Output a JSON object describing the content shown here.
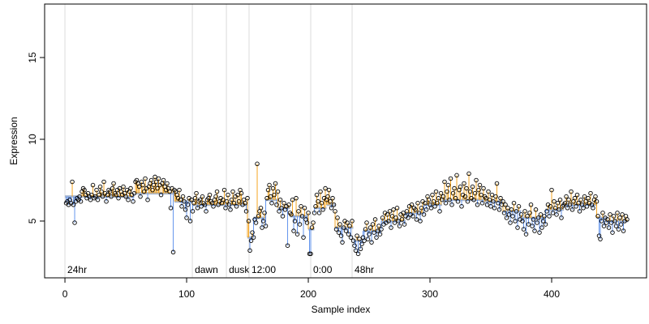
{
  "chart_data": {
    "type": "scatter",
    "x_label": "Sample index",
    "y_label": "Expression",
    "xlim": [
      -16.7,
      478
    ],
    "ylim": [
      1.53,
      18.27
    ],
    "xticks": [
      0,
      100,
      200,
      300,
      400
    ],
    "yticks": [
      5,
      10,
      15
    ],
    "point_color": "#000000",
    "above_color": "#f5a623",
    "below_color": "#6495ed",
    "fit_color": "#a9b8d0",
    "annotation_color": "#b0b0b0",
    "annotations": [
      {
        "x": 0,
        "label": "24hr"
      },
      {
        "x": 104.7,
        "label": "dawn"
      },
      {
        "x": 132.7,
        "label": "dusk"
      },
      {
        "x": 151.3,
        "label": "12:00"
      },
      {
        "x": 202,
        "label": "0:00"
      },
      {
        "x": 236,
        "label": "48hr"
      }
    ],
    "fit_segments": [
      {
        "start": 0,
        "end": 57,
        "level": 6.5
      },
      {
        "start": 57,
        "end": 90,
        "level": 6.7
      },
      {
        "start": 90,
        "end": 105,
        "level": 6.2
      },
      {
        "start": 105,
        "end": 150,
        "level": 6.0
      },
      {
        "start": 150,
        "end": 155,
        "level": 4.0
      },
      {
        "start": 155,
        "end": 165,
        "level": 5.2
      },
      {
        "start": 165,
        "end": 175,
        "level": 6.3
      },
      {
        "start": 175,
        "end": 185,
        "level": 5.8
      },
      {
        "start": 185,
        "end": 200,
        "level": 5.3
      },
      {
        "start": 200,
        "end": 205,
        "level": 4.5
      },
      {
        "start": 205,
        "end": 215,
        "level": 5.8
      },
      {
        "start": 215,
        "end": 222,
        "level": 6.0
      },
      {
        "start": 222,
        "end": 237,
        "level": 4.6
      },
      {
        "start": 237,
        "end": 245,
        "level": 3.8
      },
      {
        "start": 245,
        "end": 260,
        "level": 4.4
      },
      {
        "start": 260,
        "end": 280,
        "level": 5.0
      },
      {
        "start": 280,
        "end": 295,
        "level": 5.5
      },
      {
        "start": 295,
        "end": 310,
        "level": 6.0
      },
      {
        "start": 310,
        "end": 345,
        "level": 6.3
      },
      {
        "start": 345,
        "end": 360,
        "level": 6.2
      },
      {
        "start": 360,
        "end": 375,
        "level": 5.6
      },
      {
        "start": 375,
        "end": 395,
        "level": 5.2
      },
      {
        "start": 395,
        "end": 410,
        "level": 5.7
      },
      {
        "start": 410,
        "end": 437,
        "level": 6.0
      },
      {
        "start": 437,
        "end": 445,
        "level": 5.2
      },
      {
        "start": 445,
        "end": 463,
        "level": 5.0
      }
    ],
    "values": [
      6.1,
      6.2,
      6.0,
      6.3,
      6.1,
      7.4,
      6.0,
      4.9,
      6.2,
      6.4,
      6.3,
      6.5,
      6.2,
      6.8,
      7.0,
      6.9,
      6.6,
      6.4,
      6.7,
      6.5,
      6.3,
      6.6,
      7.2,
      6.4,
      6.5,
      6.9,
      6.3,
      6.6,
      7.1,
      6.8,
      6.5,
      7.4,
      6.7,
      6.2,
      6.6,
      6.9,
      6.8,
      6.5,
      7.0,
      7.3,
      6.7,
      6.6,
      6.9,
      6.4,
      7.0,
      6.8,
      6.6,
      7.1,
      6.7,
      6.5,
      6.9,
      6.3,
      6.8,
      7.0,
      6.6,
      6.2,
      6.7,
      7.4,
      7.5,
      7.3,
      7.1,
      6.5,
      7.4,
      7.2,
      6.8,
      7.6,
      7.0,
      6.3,
      7.1,
      7.3,
      7.5,
      6.9,
      7.2,
      7.7,
      7.4,
      7.0,
      7.6,
      7.2,
      6.6,
      7.3,
      7.5,
      7.1,
      6.9,
      7.3,
      7.0,
      6.8,
      5.8,
      7.0,
      3.1,
      6.9,
      6.8,
      6.6,
      6.4,
      6.9,
      6.3,
      5.9,
      6.5,
      6.2,
      5.7,
      5.2,
      6.0,
      6.4,
      5.0,
      6.3,
      5.6,
      6.1,
      6.4,
      6.7,
      5.8,
      6.2,
      6.3,
      5.9,
      6.5,
      6.1,
      6.0,
      5.6,
      6.3,
      6.4,
      6.6,
      6.2,
      6.1,
      5.9,
      6.3,
      6.5,
      6.8,
      6.0,
      6.2,
      6.4,
      6.1,
      6.3,
      6.9,
      5.8,
      6.2,
      6.6,
      6.0,
      5.7,
      6.3,
      6.8,
      6.1,
      6.5,
      5.9,
      6.6,
      6.2,
      6.9,
      6.7,
      6.0,
      6.3,
      6.1,
      5.6,
      6.4,
      5.0,
      3.2,
      3.8,
      4.3,
      4.0,
      5.1,
      4.9,
      8.5,
      5.3,
      5.6,
      5.8,
      4.6,
      5.0,
      5.5,
      4.7,
      6.4,
      6.9,
      7.2,
      6.5,
      6.1,
      7.0,
      6.6,
      7.3,
      6.0,
      6.8,
      5.6,
      6.3,
      5.8,
      5.3,
      6.1,
      5.7,
      5.9,
      3.5,
      6.0,
      5.5,
      5.4,
      6.3,
      4.4,
      5.0,
      6.4,
      4.2,
      5.6,
      4.8,
      5.9,
      5.3,
      4.0,
      5.8,
      5.1,
      4.9,
      5.5,
      3.0,
      3.0,
      4.6,
      4.9,
      5.5,
      5.9,
      6.6,
      6.2,
      5.5,
      6.8,
      6.1,
      5.7,
      6.4,
      7.0,
      6.3,
      6.5,
      6.9,
      6.2,
      5.8,
      6.4,
      6.0,
      5.6,
      4.5,
      5.2,
      4.3,
      4.8,
      4.1,
      3.7,
      4.6,
      5.0,
      4.4,
      4.9,
      4.2,
      4.7,
      4.0,
      5.0,
      3.8,
      3.5,
      3.2,
      4.1,
      3.0,
      3.9,
      3.3,
      3.6,
      4.0,
      3.8,
      4.5,
      4.9,
      3.9,
      4.2,
      4.6,
      3.7,
      4.8,
      4.3,
      5.1,
      4.0,
      4.4,
      4.7,
      4.2,
      4.5,
      5.2,
      4.8,
      5.5,
      4.9,
      5.4,
      5.0,
      5.6,
      4.6,
      5.3,
      5.7,
      4.9,
      5.2,
      5.8,
      5.0,
      4.7,
      5.4,
      5.1,
      5.5,
      4.8,
      5.3,
      5.6,
      5.2,
      5.9,
      5.4,
      6.0,
      5.3,
      5.8,
      5.7,
      5.1,
      6.1,
      5.5,
      5.0,
      5.8,
      6.2,
      5.4,
      6.1,
      5.7,
      6.5,
      6.3,
      6.0,
      5.8,
      6.6,
      6.2,
      5.9,
      6.8,
      6.1,
      6.4,
      5.6,
      6.7,
      6.3,
      6.5,
      7.4,
      6.1,
      6.8,
      7.2,
      6.3,
      7.6,
      6.0,
      6.7,
      7.0,
      6.4,
      7.8,
      6.2,
      6.9,
      7.1,
      5.9,
      6.6,
      7.3,
      6.5,
      7.0,
      6.2,
      7.9,
      6.8,
      6.4,
      7.1,
      6.3,
      6.7,
      7.5,
      6.0,
      6.9,
      7.2,
      6.6,
      6.1,
      7.0,
      6.5,
      6.4,
      6.0,
      6.8,
      6.3,
      5.9,
      6.6,
      6.2,
      5.8,
      6.5,
      7.3,
      6.1,
      5.7,
      6.4,
      6.0,
      6.2,
      5.5,
      6.0,
      5.2,
      5.8,
      5.4,
      4.9,
      5.7,
      5.3,
      6.1,
      5.0,
      5.6,
      4.6,
      5.9,
      5.1,
      5.4,
      5.0,
      4.5,
      5.6,
      4.2,
      5.3,
      4.8,
      5.5,
      6.0,
      4.7,
      5.1,
      4.4,
      5.7,
      4.9,
      5.2,
      4.3,
      5.4,
      4.6,
      5.0,
      5.3,
      4.8,
      5.6,
      6.0,
      5.3,
      5.9,
      6.9,
      5.5,
      6.2,
      5.8,
      5.4,
      6.1,
      5.7,
      6.3,
      5.2,
      5.9,
      6.0,
      6.1,
      6.5,
      5.8,
      6.3,
      6.0,
      6.8,
      5.7,
      6.2,
      6.4,
      5.9,
      6.6,
      6.1,
      5.6,
      6.3,
      6.0,
      5.8,
      6.5,
      6.2,
      5.9,
      6.4,
      6.1,
      6.7,
      6.0,
      5.8,
      6.3,
      6.5,
      6.2,
      5.3,
      4.1,
      3.9,
      5.0,
      5.5,
      4.7,
      5.2,
      4.9,
      5.1,
      4.6,
      5.4,
      4.9,
      4.3,
      5.3,
      5.0,
      4.7,
      5.5,
      4.5,
      5.2,
      4.8,
      5.4,
      4.4,
      5.0,
      5.3,
      5.1
    ]
  }
}
